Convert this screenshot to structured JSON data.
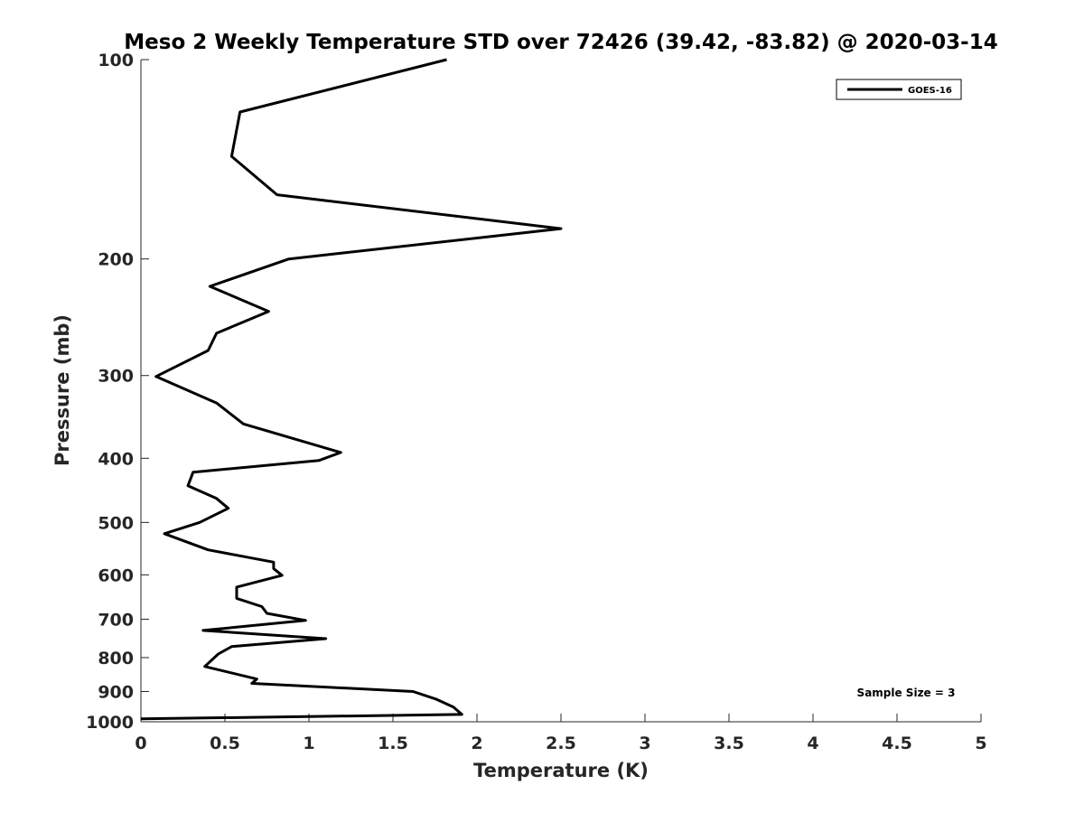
{
  "chart_data": {
    "type": "line",
    "title": "Meso 2 Weekly Temperature STD over 72426 (39.42, -83.82) @ 2020-03-14",
    "xlabel": "Temperature (K)",
    "ylabel": "Pressure (mb)",
    "xlim": [
      0,
      5
    ],
    "ylim": [
      100,
      1000
    ],
    "yscale": "log",
    "yreversed": true,
    "grid": false,
    "x_ticks": [
      0,
      0.5,
      1,
      1.5,
      2,
      2.5,
      3,
      3.5,
      4,
      4.5,
      5
    ],
    "x_tick_labels": [
      "0",
      "0.5",
      "1",
      "1.5",
      "2",
      "2.5",
      "3",
      "3.5",
      "4",
      "4.5",
      "5"
    ],
    "y_ticks": [
      100,
      200,
      300,
      400,
      500,
      600,
      700,
      800,
      900,
      1000
    ],
    "y_tick_labels": [
      "100",
      "200",
      "300",
      "400",
      "500",
      "600",
      "700",
      "800",
      "900",
      "1000"
    ],
    "legend": {
      "position": "top-right",
      "entries": [
        "GOES-16"
      ]
    },
    "annotation": "Sample Size = 3",
    "series": [
      {
        "name": "GOES-16",
        "color": "#000000",
        "points": [
          [
            1.82,
            100
          ],
          [
            0.59,
            120
          ],
          [
            0.54,
            140
          ],
          [
            0.81,
            160
          ],
          [
            2.5,
            180
          ],
          [
            0.88,
            200
          ],
          [
            0.41,
            220
          ],
          [
            0.76,
            240
          ],
          [
            0.45,
            259
          ],
          [
            0.4,
            275
          ],
          [
            0.09,
            301
          ],
          [
            0.45,
            330
          ],
          [
            0.61,
            355
          ],
          [
            1.19,
            392
          ],
          [
            1.06,
            403
          ],
          [
            0.31,
            420
          ],
          [
            0.28,
            440
          ],
          [
            0.45,
            460
          ],
          [
            0.52,
            476
          ],
          [
            0.35,
            500
          ],
          [
            0.14,
            520
          ],
          [
            0.4,
            550
          ],
          [
            0.79,
            574
          ],
          [
            0.79,
            587
          ],
          [
            0.84,
            601
          ],
          [
            0.57,
            626
          ],
          [
            0.57,
            651
          ],
          [
            0.72,
            670
          ],
          [
            0.75,
            686
          ],
          [
            0.98,
            703
          ],
          [
            0.37,
            728
          ],
          [
            1.1,
            749
          ],
          [
            0.54,
            770
          ],
          [
            0.46,
            790
          ],
          [
            0.38,
            825
          ],
          [
            0.69,
            862
          ],
          [
            0.66,
            875
          ],
          [
            1.62,
            900
          ],
          [
            1.76,
            925
          ],
          [
            1.86,
            950
          ],
          [
            1.91,
            975
          ],
          [
            0.0,
            990
          ]
        ]
      }
    ]
  }
}
